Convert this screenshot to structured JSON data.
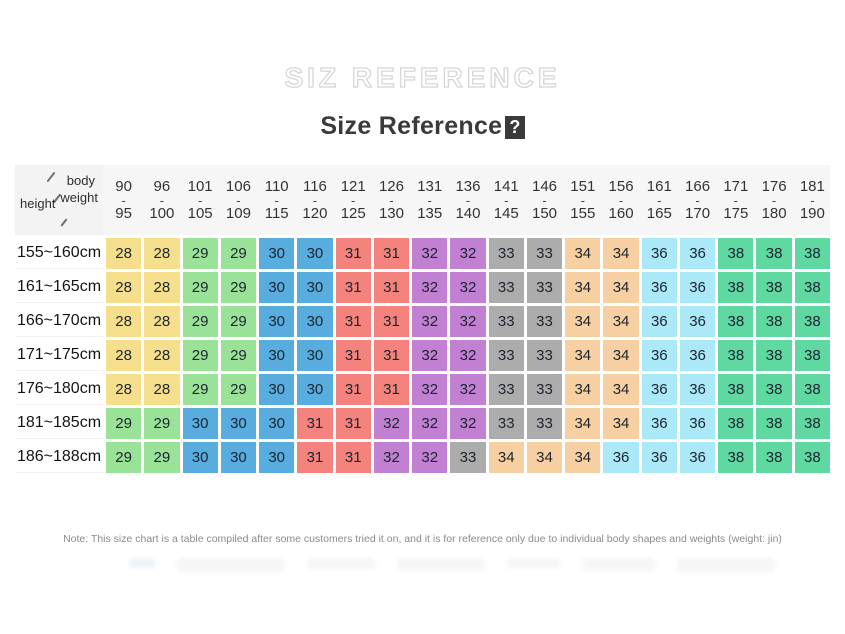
{
  "header": {
    "outline_title": "SIZ REFERENCE",
    "main_title": "Size Reference",
    "missing_glyph": "?"
  },
  "chart_data": {
    "type": "table",
    "title": "Size Reference",
    "corner": {
      "col_axis_line1": "body",
      "col_axis_line2": "weight",
      "row_axis": "height"
    },
    "range_separator": "-",
    "weight_columns": [
      {
        "from": "90",
        "to": "95"
      },
      {
        "from": "96",
        "to": "100"
      },
      {
        "from": "101",
        "to": "105"
      },
      {
        "from": "106",
        "to": "109"
      },
      {
        "from": "110",
        "to": "115"
      },
      {
        "from": "116",
        "to": "120"
      },
      {
        "from": "121",
        "to": "125"
      },
      {
        "from": "126",
        "to": "130"
      },
      {
        "from": "131",
        "to": "135"
      },
      {
        "from": "136",
        "to": "140"
      },
      {
        "from": "141",
        "to": "145"
      },
      {
        "from": "146",
        "to": "150"
      },
      {
        "from": "151",
        "to": "155"
      },
      {
        "from": "156",
        "to": "160"
      },
      {
        "from": "161",
        "to": "165"
      },
      {
        "from": "166",
        "to": "170"
      },
      {
        "from": "171",
        "to": "175"
      },
      {
        "from": "176",
        "to": "180"
      },
      {
        "from": "181",
        "to": "190"
      }
    ],
    "rows": [
      {
        "height": "155~160cm",
        "sizes": [
          28,
          28,
          29,
          29,
          30,
          30,
          31,
          31,
          32,
          32,
          33,
          33,
          34,
          34,
          36,
          36,
          38,
          38,
          38
        ]
      },
      {
        "height": "161~165cm",
        "sizes": [
          28,
          28,
          29,
          29,
          30,
          30,
          31,
          31,
          32,
          32,
          33,
          33,
          34,
          34,
          36,
          36,
          38,
          38,
          38
        ]
      },
      {
        "height": "166~170cm",
        "sizes": [
          28,
          28,
          29,
          29,
          30,
          30,
          31,
          31,
          32,
          32,
          33,
          33,
          34,
          34,
          36,
          36,
          38,
          38,
          38
        ]
      },
      {
        "height": "171~175cm",
        "sizes": [
          28,
          28,
          29,
          29,
          30,
          30,
          31,
          31,
          32,
          32,
          33,
          33,
          34,
          34,
          36,
          36,
          38,
          38,
          38
        ]
      },
      {
        "height": "176~180cm",
        "sizes": [
          28,
          28,
          29,
          29,
          30,
          30,
          31,
          31,
          32,
          32,
          33,
          33,
          34,
          34,
          36,
          36,
          38,
          38,
          38
        ]
      },
      {
        "height": "181~185cm",
        "sizes": [
          29,
          29,
          30,
          30,
          30,
          31,
          31,
          32,
          32,
          32,
          33,
          33,
          34,
          34,
          36,
          36,
          38,
          38,
          38
        ]
      },
      {
        "height": "186~188cm",
        "sizes": [
          29,
          29,
          30,
          30,
          30,
          31,
          31,
          32,
          32,
          33,
          34,
          34,
          34,
          36,
          36,
          36,
          38,
          38,
          38
        ]
      }
    ],
    "cell_colors_by_size": {
      "28": "#F5DF8D",
      "29": "#9BE299",
      "30": "#58ACDE",
      "31": "#F5837D",
      "32": "#C180D1",
      "33": "#ACACAC",
      "34": "#F6CFA2",
      "36": "#ACE9F8",
      "38": "#60D8A1"
    },
    "note": "Note: This size chart is a table compiled after some customers tried it on, and it is for reference only due to individual body shapes and weights (weight: jin)"
  }
}
